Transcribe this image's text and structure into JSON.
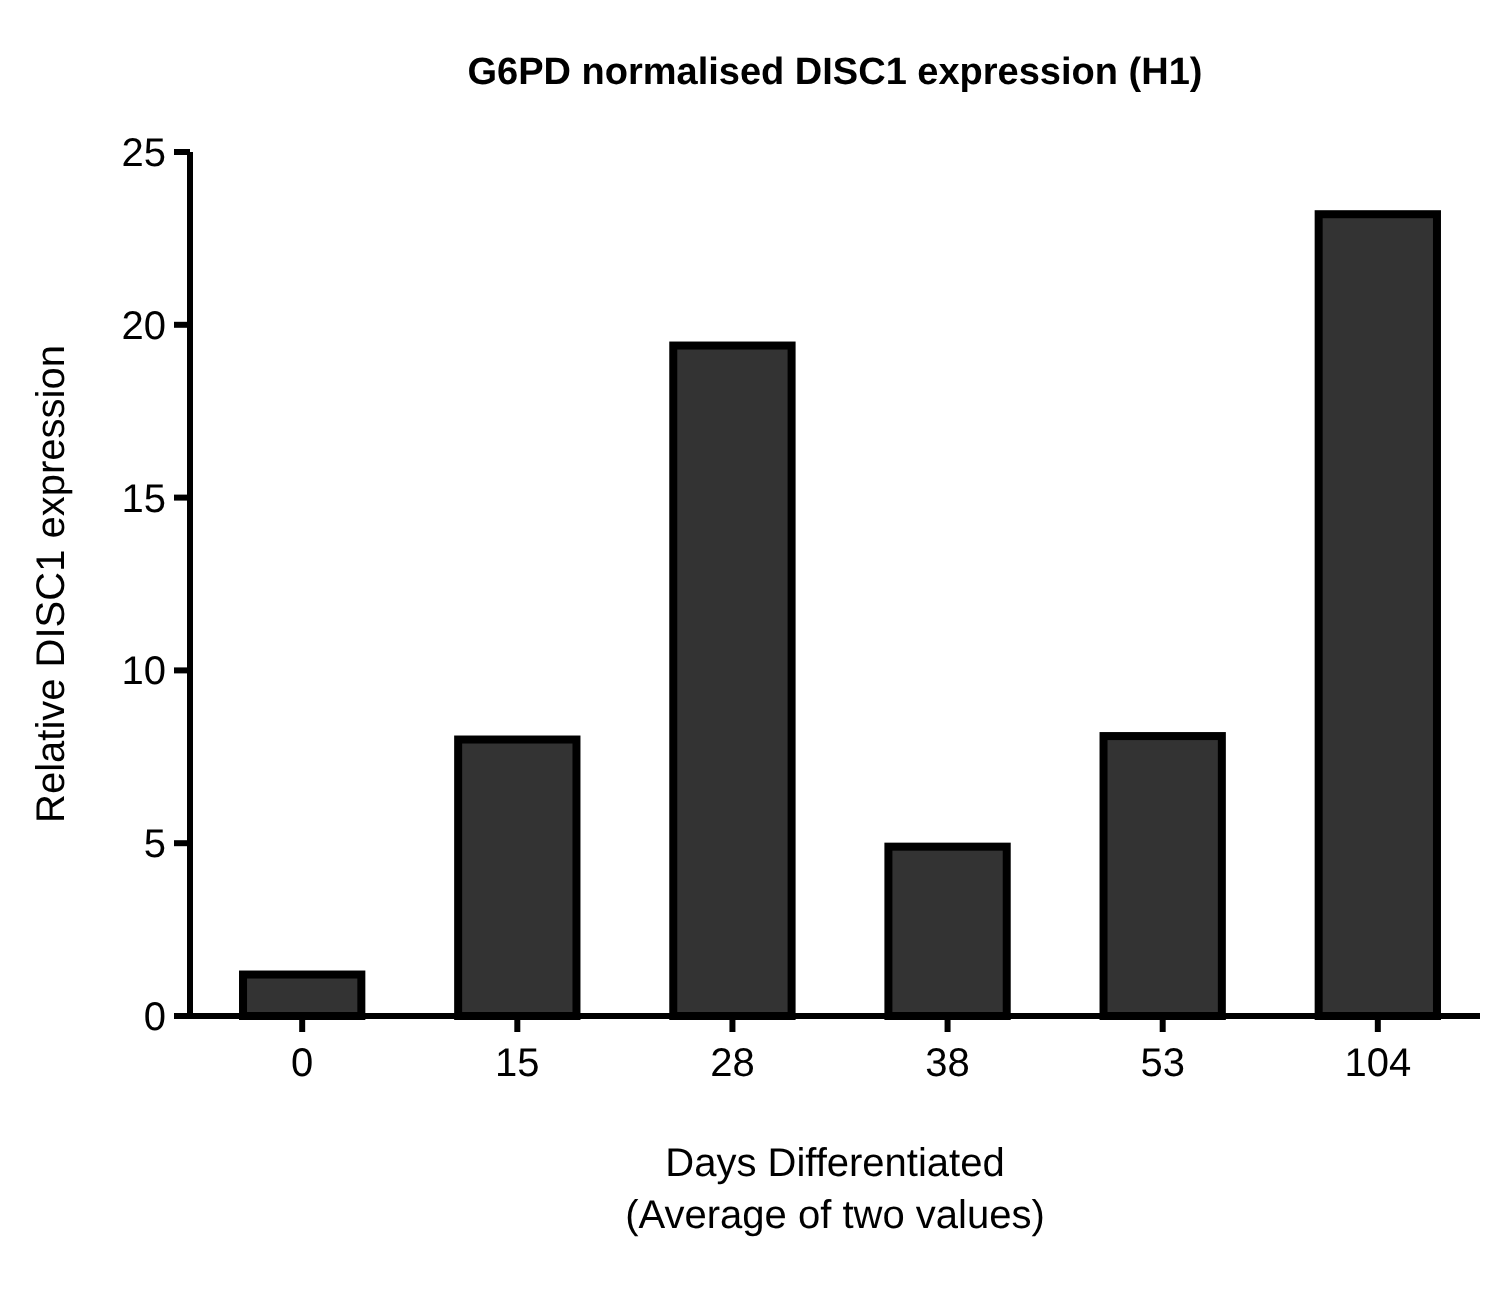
{
  "chart_data": {
    "type": "bar",
    "title": "G6PD normalised DISC1 expression (H1)",
    "xlabel": "Days Differentiated\n(Average of two values)",
    "ylabel": "Relative  DISC1 expression",
    "categories": [
      "0",
      "15",
      "28",
      "38",
      "53",
      "104"
    ],
    "values": [
      1.2,
      8.0,
      19.4,
      4.9,
      8.1,
      23.2
    ],
    "color": "#333333",
    "ylim": [
      0,
      25
    ],
    "yticks": [
      0,
      5,
      10,
      15,
      20,
      25
    ],
    "grid": false
  }
}
